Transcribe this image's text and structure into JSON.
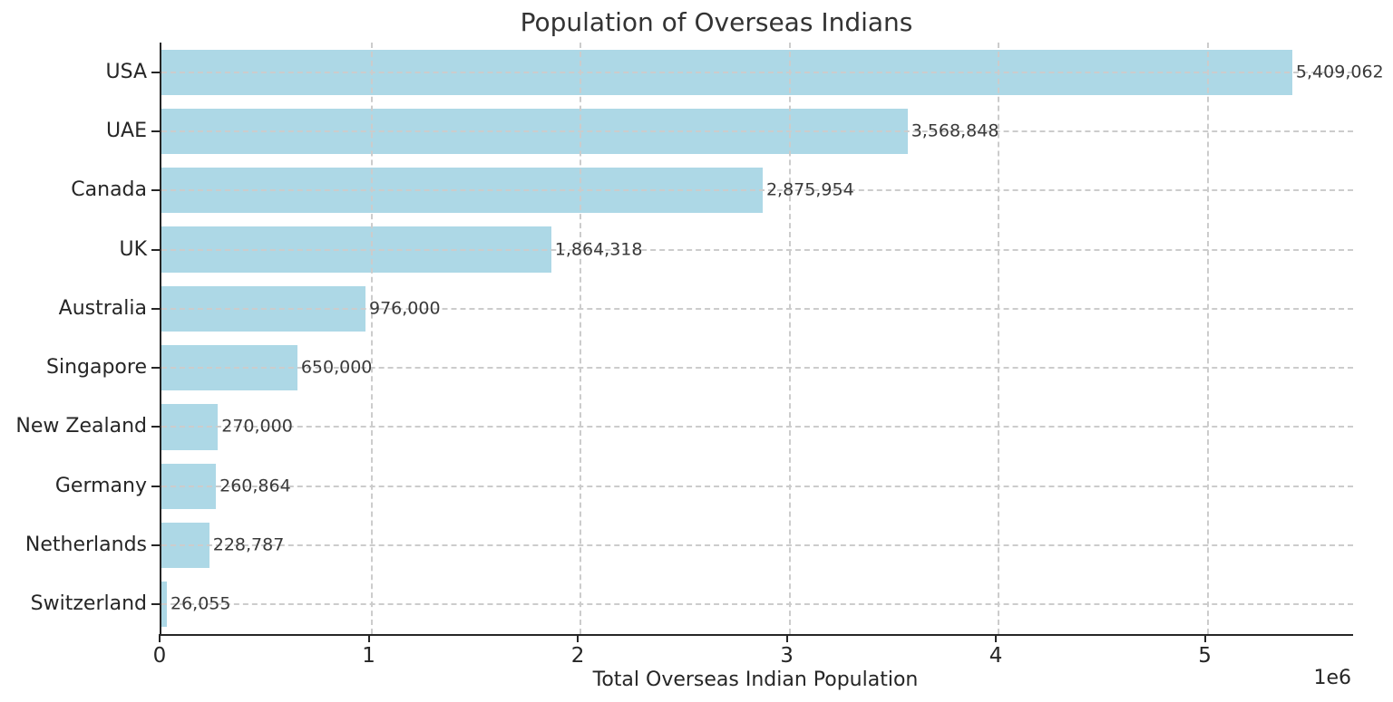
{
  "chart_data": {
    "type": "bar",
    "orientation": "horizontal",
    "title": "Population of Overseas Indians",
    "xlabel": "Total Overseas Indian Population",
    "ylabel": "",
    "categories": [
      "USA",
      "UAE",
      "Canada",
      "UK",
      "Australia",
      "Singapore",
      "New Zealand",
      "Germany",
      "Netherlands",
      "Switzerland"
    ],
    "values": [
      5409062,
      3568848,
      2875954,
      1864318,
      976000,
      650000,
      270000,
      260864,
      228787,
      26055
    ],
    "value_labels": [
      "5,409,062",
      "3,568,848",
      "2,875,954",
      "1,864,318",
      "976,000",
      "650,000",
      "270,000",
      "260,864",
      "228,787",
      "26,055"
    ],
    "x_ticks": [
      0,
      1000000,
      2000000,
      3000000,
      4000000,
      5000000
    ],
    "x_tick_labels": [
      "0",
      "1",
      "2",
      "3",
      "4",
      "5"
    ],
    "offset_text": "1e6",
    "xlim": [
      0,
      5700000
    ],
    "bar_color": "#ADD8E6",
    "grid": true,
    "grid_style": "dashed",
    "legend": "none"
  }
}
